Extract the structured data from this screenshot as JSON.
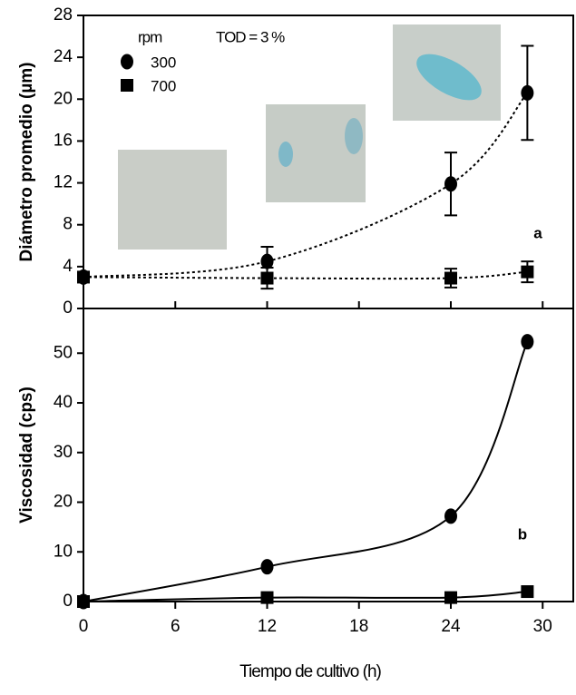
{
  "chart_data": [
    {
      "type": "scatter",
      "panel_label": "a",
      "ylabel": "Diámetro promedio (µm)",
      "legend_title": "rpm",
      "annotation": "TOD = 3 %",
      "x": [
        0,
        12,
        24,
        29
      ],
      "series": [
        {
          "name": "300",
          "color": "#000000",
          "marker": "circle",
          "values": [
            3,
            4.5,
            11.9,
            20.6
          ],
          "errors": [
            0.5,
            1.4,
            3,
            4.5
          ]
        },
        {
          "name": "700",
          "color": "#000000",
          "marker": "square",
          "values": [
            3,
            2.9,
            2.9,
            3.5
          ],
          "errors": [
            0.5,
            1,
            0.9,
            1
          ]
        }
      ],
      "line_style": "dotted",
      "xlim": [
        0,
        32
      ],
      "xticks": [
        0,
        6,
        12,
        18,
        24,
        30
      ],
      "ylim": [
        0,
        28
      ],
      "yticks": [
        0,
        4,
        8,
        12,
        16,
        20,
        24,
        28
      ]
    },
    {
      "type": "scatter",
      "panel_label": "b",
      "ylabel": "Viscosidad (cps)",
      "xlabel": "Tiempo de cultivo (h)",
      "x": [
        0,
        12,
        24,
        29
      ],
      "series": [
        {
          "name": "300",
          "color": "#000000",
          "marker": "circle",
          "values": [
            0,
            7,
            17.2,
            52.3
          ]
        },
        {
          "name": "700",
          "color": "#000000",
          "marker": "square",
          "values": [
            0,
            0.8,
            0.8,
            2
          ]
        }
      ],
      "line_style": "solid",
      "xlim": [
        0,
        32
      ],
      "xticks": [
        0,
        6,
        12,
        18,
        24,
        30
      ],
      "ylim": [
        0,
        59
      ],
      "yticks": [
        0,
        10,
        20,
        30,
        40,
        50
      ]
    }
  ]
}
